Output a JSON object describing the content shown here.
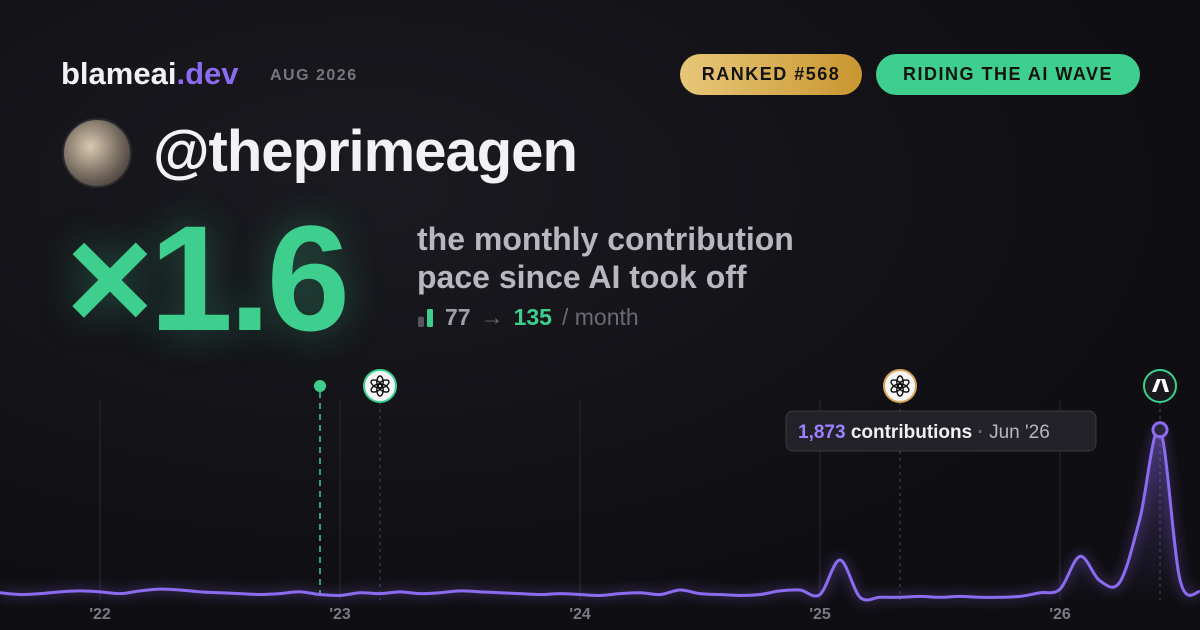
{
  "header": {
    "brand": "blameai",
    "brand_tld": ".dev",
    "period": "AUG 2026",
    "badges": [
      "RANKED #568",
      "RIDING THE AI WAVE"
    ],
    "handle": "@theprimeagen"
  },
  "hero": {
    "multiplier": "×1.6",
    "description": [
      "the monthly contribution",
      "pace since AI took off"
    ],
    "before": 77,
    "arrow": "→",
    "after": 135,
    "unit": "/ month"
  },
  "chart_data": {
    "type": "area",
    "color": "#8b6cf0",
    "categories": [
      null,
      null,
      null,
      null,
      null,
      "'22",
      null,
      null,
      null,
      null,
      null,
      null,
      null,
      null,
      null,
      null,
      null,
      "'23",
      null,
      null,
      null,
      null,
      null,
      null,
      null,
      null,
      null,
      null,
      null,
      "'24",
      null,
      null,
      null,
      null,
      null,
      null,
      null,
      null,
      null,
      null,
      null,
      "'25",
      null,
      null,
      null,
      null,
      null,
      null,
      null,
      null,
      null,
      null,
      null,
      "'26",
      null,
      null,
      null,
      null,
      null,
      null,
      null
    ],
    "series": [
      {
        "name": "contributions",
        "color": "#8b6cf0",
        "values": [
          80,
          60,
          70,
          90,
          100,
          90,
          70,
          100,
          120,
          110,
          90,
          80,
          70,
          60,
          70,
          90,
          60,
          50,
          80,
          70,
          90,
          70,
          80,
          100,
          90,
          80,
          70,
          60,
          70,
          60,
          50,
          70,
          80,
          60,
          110,
          70,
          60,
          50,
          60,
          100,
          110,
          60,
          440,
          30,
          30,
          30,
          40,
          30,
          40,
          30,
          30,
          40,
          80,
          120,
          480,
          210,
          200,
          900,
          1873,
          220,
          90
        ]
      }
    ],
    "ylim": [
      0,
      2200
    ],
    "markers": [
      {
        "index": 16,
        "kind": "dot"
      },
      {
        "index": 19,
        "kind": "openai"
      },
      {
        "index": 45,
        "kind": "openai"
      },
      {
        "index": 58,
        "kind": "anthropic"
      }
    ],
    "tooltip": {
      "index": 58,
      "value_label": "1,873",
      "text": "contributions",
      "date": "Jun '26"
    }
  }
}
